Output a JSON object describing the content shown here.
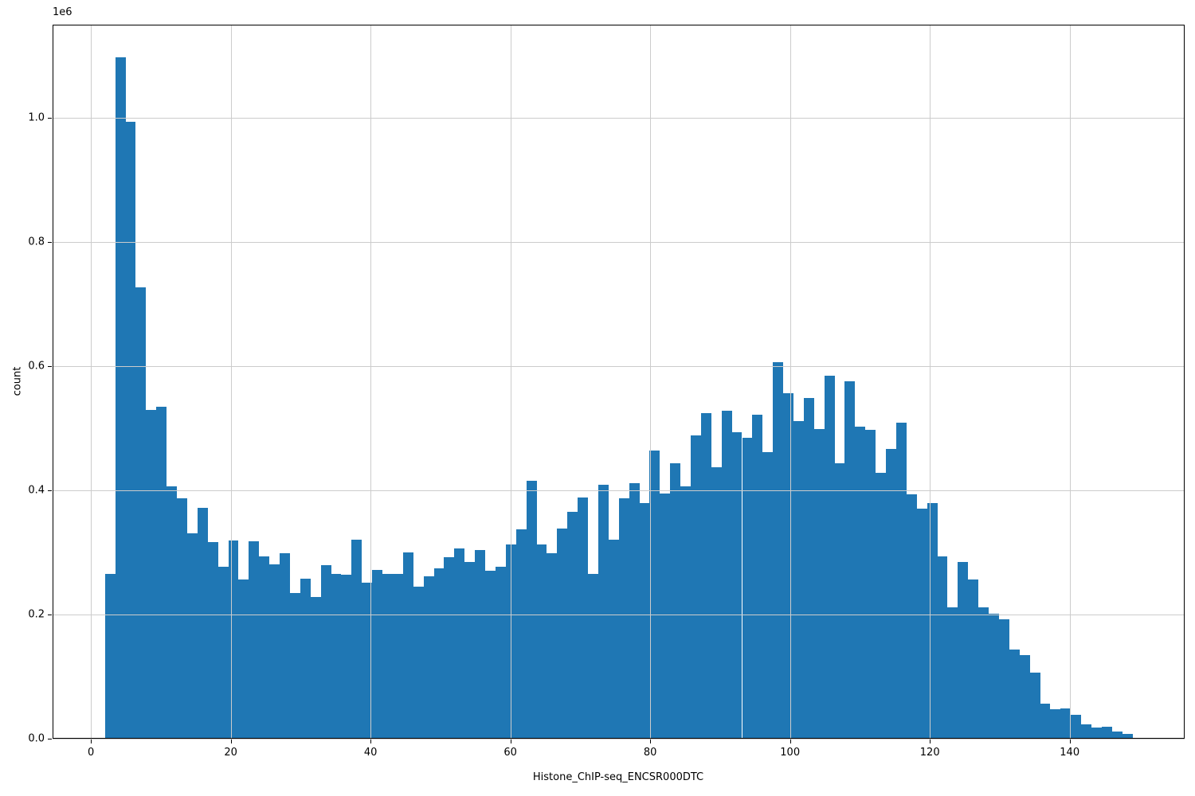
{
  "figure": {
    "xlabel": "Histone_ChIP-seq_ENCSR000DTC",
    "ylabel": "count",
    "offset_label": "1e6"
  },
  "chart_data": {
    "type": "bar",
    "subtype": "histogram",
    "title": "",
    "xlabel": "Histone_ChIP-seq_ENCSR000DTC",
    "ylabel": "count",
    "y_unit_multiplier_label": "1e6",
    "bin_start": 2,
    "bin_width": 1.47,
    "values_in_millions": [
      0.265,
      1.098,
      0.994,
      0.727,
      0.529,
      0.534,
      0.407,
      0.387,
      0.331,
      0.372,
      0.317,
      0.277,
      0.319,
      0.257,
      0.318,
      0.294,
      0.281,
      0.299,
      0.234,
      0.258,
      0.228,
      0.28,
      0.266,
      0.264,
      0.321,
      0.251,
      0.272,
      0.265,
      0.265,
      0.3,
      0.245,
      0.262,
      0.274,
      0.292,
      0.307,
      0.284,
      0.304,
      0.27,
      0.277,
      0.313,
      0.337,
      0.416,
      0.313,
      0.299,
      0.338,
      0.365,
      0.388,
      0.265,
      0.409,
      0.321,
      0.387,
      0.412,
      0.38,
      0.464,
      0.395,
      0.444,
      0.406,
      0.489,
      0.524,
      0.437,
      0.528,
      0.494,
      0.484,
      0.522,
      0.462,
      0.606,
      0.557,
      0.512,
      0.549,
      0.499,
      0.585,
      0.444,
      0.576,
      0.503,
      0.498,
      0.428,
      0.467,
      0.509,
      0.394,
      0.371,
      0.379,
      0.294,
      0.212,
      0.284,
      0.257,
      0.212,
      0.201,
      0.192,
      0.143,
      0.135,
      0.106,
      0.056,
      0.047,
      0.049,
      0.038,
      0.023,
      0.018,
      0.019,
      0.012,
      0.008
    ],
    "x_ticks": [
      0,
      20,
      40,
      60,
      80,
      100,
      120,
      140
    ],
    "y_ticks": [
      0.0,
      0.2,
      0.4,
      0.6,
      0.8,
      1.0
    ],
    "xlim": [
      -5.6,
      156.4
    ],
    "ylim_in_millions": [
      0,
      1.15
    ],
    "grid": true,
    "grid_above_bars": true,
    "legend": false,
    "bar_color": "#1f77b4",
    "grid_color": "#cccccc",
    "spine_color": "#000000",
    "text_color": "#000000"
  }
}
